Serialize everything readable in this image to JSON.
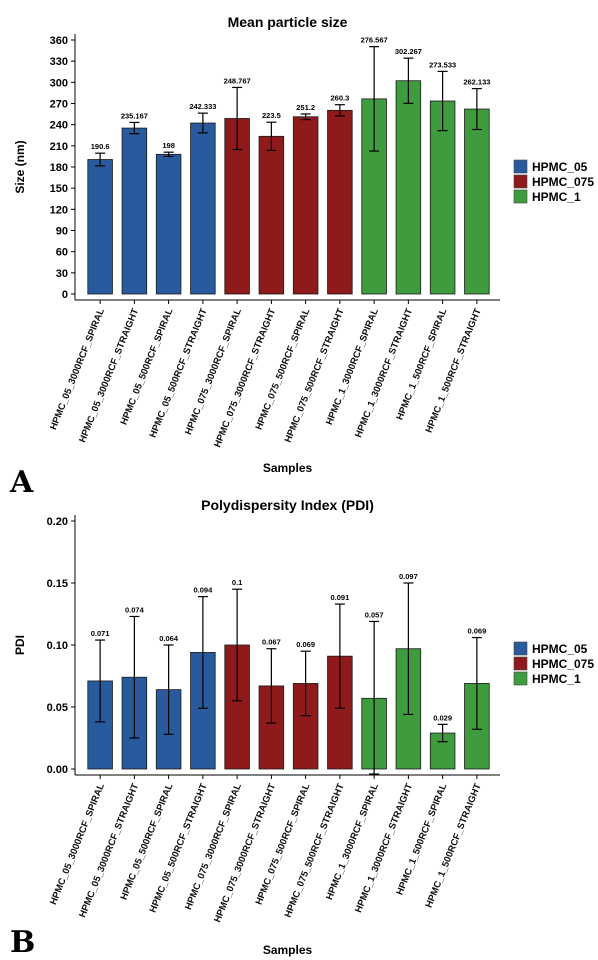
{
  "panels": [
    {
      "letter": "A",
      "chart_data": {
        "type": "bar",
        "title": "Mean particle size",
        "xlabel": "Samples",
        "ylabel": "Size (nm)",
        "ylim": [
          0,
          360
        ],
        "yticks": [
          0,
          30,
          60,
          90,
          120,
          150,
          180,
          210,
          240,
          270,
          300,
          330,
          360
        ],
        "categories": [
          "HPMC_05_3000RCF_SPIRAL",
          "HPMC_05_3000RCF_STRAIGHT",
          "HPMC_05_500RCF_SPIRAL",
          "HPMC_05_500RCF_STRAIGHT",
          "HPMC_075_3000RCF_SPIRAL",
          "HPMC_075_3000RCF_STRAIGHT",
          "HPMC_075_500RCF_SPIRAL",
          "HPMC_075_500RCF_STRAIGHT",
          "HPMC_1_3000RCF_SPIRAL",
          "HPMC_1_3000RCF_STRAIGHT",
          "HPMC_1_500RCF_SPIRAL",
          "HPMC_1_500RCF_STRAIGHT"
        ],
        "values": [
          190.6,
          235.167,
          198,
          242.333,
          248.767,
          223.5,
          251.2,
          260.3,
          276.567,
          302.267,
          273.533,
          262.133
        ],
        "labels": [
          "190.6",
          "235.167",
          "198",
          "242.333",
          "248.767",
          "223.5",
          "251.2",
          "260.3",
          "276.567",
          "302.267",
          "273.533",
          "262.133"
        ],
        "errors": [
          9,
          8,
          3,
          14,
          44,
          20,
          4,
          8,
          74,
          32,
          42,
          29
        ],
        "groups": [
          0,
          0,
          0,
          0,
          1,
          1,
          1,
          1,
          2,
          2,
          2,
          2
        ],
        "legend": [
          "HPMC_05",
          "HPMC_075",
          "HPMC_1"
        ],
        "legend_position": "right",
        "grid": false
      }
    },
    {
      "letter": "B",
      "chart_data": {
        "type": "bar",
        "title": "Polydispersity Index (PDI)",
        "xlabel": "Samples",
        "ylabel": "PDI",
        "ylim": [
          0,
          0.2
        ],
        "yticks": [
          "0.00",
          "0.05",
          "0.10",
          "0.15",
          "0.20"
        ],
        "categories": [
          "HPMC_05_3000RCF_SPIRAL",
          "HPMC_05_3000RCF_STRAIGHT",
          "HPMC_05_500RCF_SPIRAL",
          "HPMC_05_500RCF_STRAIGHT",
          "HPMC_075_3000RCF_SPIRAL",
          "HPMC_075_3000RCF_STRAIGHT",
          "HPMC_075_500RCF_SPIRAL",
          "HPMC_075_500RCF_STRAIGHT",
          "HPMC_1_3000RCF_SPIRAL",
          "HPMC_1_3000RCF_STRAIGHT",
          "HPMC_1_500RCF_SPIRAL",
          "HPMC_1_500RCF_STRAIGHT"
        ],
        "values": [
          0.071,
          0.074,
          0.064,
          0.094,
          0.1,
          0.067,
          0.069,
          0.091,
          0.057,
          0.097,
          0.029,
          0.069
        ],
        "labels": [
          "0.071",
          "0.074",
          "0.064",
          "0.094",
          "0.1",
          "0.067",
          "0.069",
          "0.091",
          "0.057",
          "0.097",
          "0.029",
          "0.069"
        ],
        "errors": [
          0.033,
          0.049,
          0.036,
          0.045,
          0.045,
          0.03,
          0.026,
          0.042,
          0.062,
          0.053,
          0.007,
          0.037
        ],
        "groups": [
          0,
          0,
          0,
          0,
          1,
          1,
          1,
          1,
          2,
          2,
          2,
          2
        ],
        "legend": [
          "HPMC_05",
          "HPMC_075",
          "HPMC_1"
        ],
        "legend_position": "right",
        "grid": false
      }
    }
  ],
  "colors": {
    "HPMC_05": "#2a5a9e",
    "HPMC_075": "#8e1a1c",
    "HPMC_1": "#3e9b3e",
    "axis": "#000000"
  }
}
